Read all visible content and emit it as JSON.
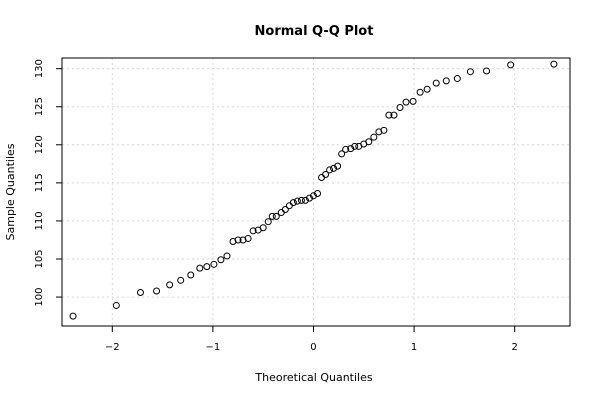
{
  "chart_data": {
    "type": "scatter",
    "title": "Normal Q-Q Plot",
    "xlabel": "Theoretical Quantiles",
    "ylabel": "Sample Quantiles",
    "xlim": [
      -2.5,
      2.55
    ],
    "ylim": [
      96.2,
      131.4
    ],
    "grid": true,
    "x_ticks": [
      -2,
      -1,
      0,
      1,
      2
    ],
    "x_tick_labels": [
      "−2",
      "−1",
      "0",
      "1",
      "2"
    ],
    "y_ticks": [
      100,
      105,
      110,
      115,
      120,
      125,
      130
    ],
    "y_tick_labels": [
      "100",
      "105",
      "110",
      "115",
      "120",
      "125",
      "130"
    ],
    "point_color": "#000000",
    "x": [
      -2.39,
      -1.96,
      -1.72,
      -1.56,
      -1.43,
      -1.32,
      -1.22,
      -1.13,
      -1.06,
      -0.99,
      -0.92,
      -0.86,
      -0.8,
      -0.75,
      -0.7,
      -0.65,
      -0.6,
      -0.55,
      -0.5,
      -0.45,
      -0.41,
      -0.37,
      -0.32,
      -0.28,
      -0.24,
      -0.2,
      -0.16,
      -0.12,
      -0.08,
      -0.04,
      0.0,
      0.04,
      0.08,
      0.12,
      0.16,
      0.2,
      0.24,
      0.28,
      0.32,
      0.37,
      0.41,
      0.45,
      0.5,
      0.55,
      0.6,
      0.65,
      0.7,
      0.75,
      0.8,
      0.86,
      0.92,
      0.99,
      1.06,
      1.13,
      1.22,
      1.32,
      1.43,
      1.56,
      1.72,
      1.96,
      2.39
    ],
    "y": [
      97.5,
      98.9,
      100.6,
      100.8,
      101.6,
      102.2,
      102.9,
      103.8,
      104.0,
      104.3,
      104.9,
      105.4,
      107.3,
      107.5,
      107.5,
      107.7,
      108.7,
      108.8,
      109.1,
      109.9,
      110.6,
      110.6,
      111.1,
      111.5,
      112.0,
      112.4,
      112.6,
      112.7,
      112.7,
      113.0,
      113.3,
      113.6,
      115.7,
      116.1,
      116.7,
      116.9,
      117.2,
      118.8,
      119.4,
      119.5,
      119.8,
      119.8,
      120.1,
      120.4,
      121.0,
      121.7,
      121.9,
      123.9,
      123.9,
      124.9,
      125.6,
      125.7,
      126.9,
      127.3,
      128.1,
      128.4,
      128.7,
      129.6,
      129.7,
      130.5,
      130.6
    ]
  }
}
